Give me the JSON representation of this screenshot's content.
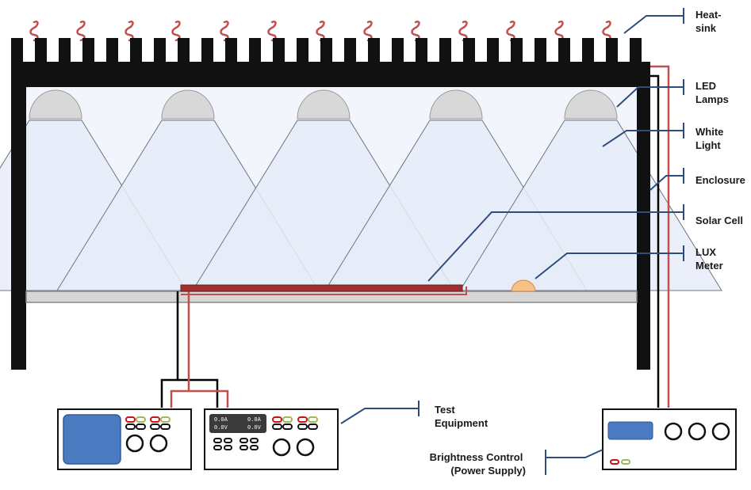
{
  "labels": {
    "heatsink": [
      "Heat-",
      "sink"
    ],
    "led_lamps": [
      "LED",
      "Lamps"
    ],
    "white_light": [
      "White",
      "Light"
    ],
    "enclosure": [
      "Enclosure"
    ],
    "solar_cell": [
      "Solar Cell"
    ],
    "lux_meter": [
      "LUX",
      "Meter"
    ],
    "test_equipment": [
      "Test",
      "Equipment"
    ],
    "brightness_control": [
      "Brightness Control",
      "(Power Supply)"
    ]
  },
  "readouts": {
    "left_current": "0.0A",
    "left_voltage": "0.0V",
    "right_current": "0.0A",
    "right_voltage": "0.0V"
  },
  "colors": {
    "frame": "#111111",
    "leader_line": "#2e4d7a",
    "positive_wire": "#c0504d",
    "negative_wire": "#000000",
    "solar_cell": "#a03030",
    "lux_meter": "#f7c28a",
    "light_cone": "#e6ecf8",
    "screen": "#4a7ac0",
    "terminal_red": "#d01010",
    "terminal_green": "#9bbb59"
  },
  "icons": {
    "heat_wave": "heat-wave-icon",
    "led_lamp": "led-lamp-icon"
  }
}
